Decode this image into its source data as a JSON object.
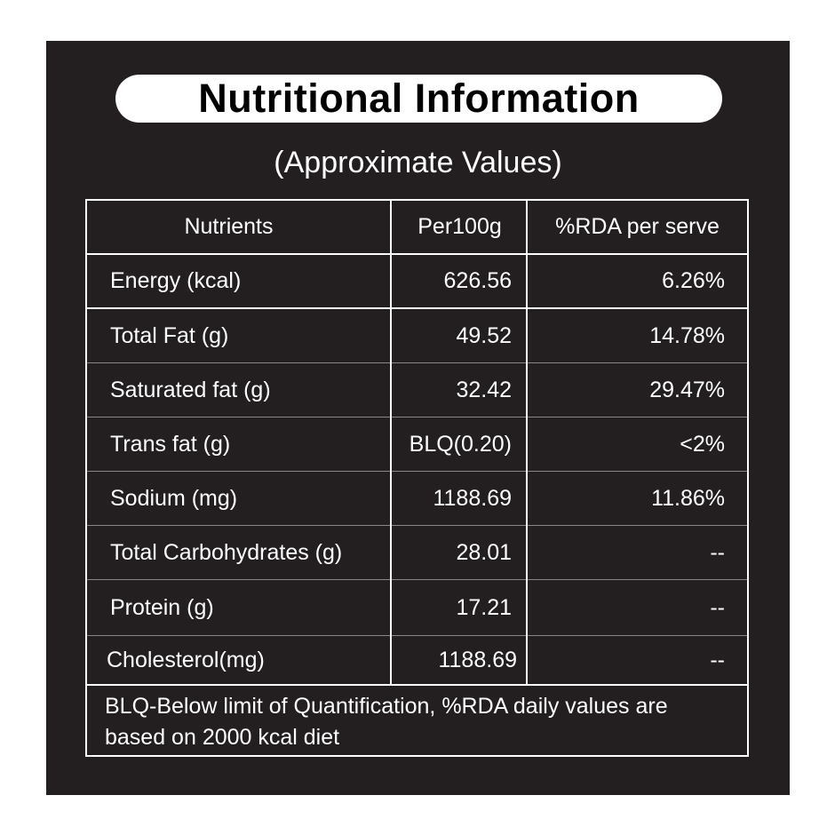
{
  "title": "Nutritional Information",
  "subtitle": "(Approximate Values)",
  "table": {
    "headers": [
      "Nutrients",
      "Per100g",
      "%RDA per serve"
    ],
    "rows": [
      {
        "nutrient": "Energy (kcal)",
        "per100g": "626.56",
        "rda": "6.26%"
      },
      {
        "nutrient": "Total Fat (g)",
        "per100g": "49.52",
        "rda": "14.78%"
      },
      {
        "nutrient": "Saturated fat (g)",
        "per100g": "32.42",
        "rda": "29.47%"
      },
      {
        "nutrient": "Trans fat (g)",
        "per100g": "BLQ(0.20)",
        "rda": "<2%"
      },
      {
        "nutrient": "Sodium (mg)",
        "per100g": "1188.69",
        "rda": "11.86%"
      },
      {
        "nutrient": "Total Carbohydrates (g)",
        "per100g": "28.01",
        "rda": "--"
      },
      {
        "nutrient": "Protein (g)",
        "per100g": "17.21",
        "rda": "--"
      },
      {
        "nutrient": "Cholesterol(mg)",
        "per100g": "1188.69",
        "rda": "--"
      }
    ]
  },
  "footnote": "BLQ-Below limit of Quantification, %RDA daily values are based on 2000 kcal diet",
  "colors": {
    "background": "#231f20",
    "text": "#ffffff",
    "title_text": "#000000"
  }
}
